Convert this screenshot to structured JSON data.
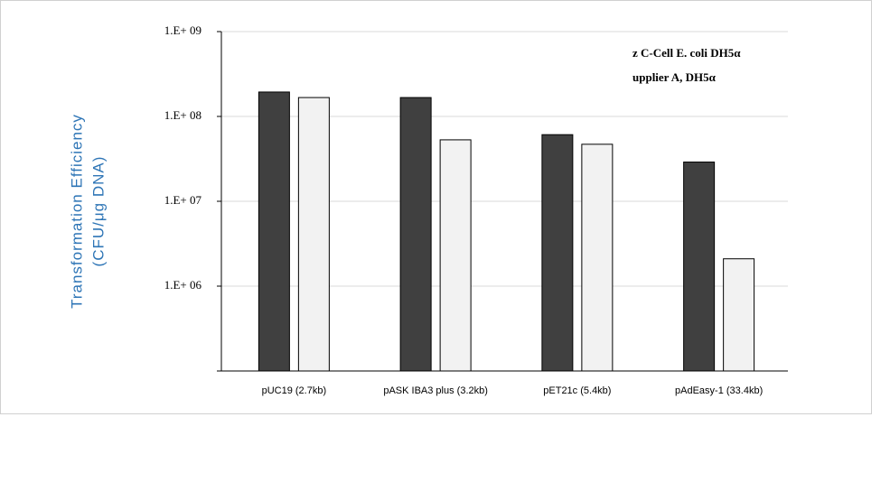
{
  "chart_data": {
    "type": "bar",
    "y_label": [
      "Transformation  Efficiency",
      "(CFU/μg DNA)"
    ],
    "categories": [
      "pUC19 (2.7kb)",
      "pASK IBA3 plus (3.2kb)",
      "pET21c (5.4kb)",
      "pAdEasy-1 (33.4kb)"
    ],
    "series": [
      {
        "name": "z C-Cell E. coli DH5α",
        "color": "#404040",
        "values": [
          194000000,
          167000000,
          61000000,
          29000000
        ]
      },
      {
        "name": "upplier A, DH5α",
        "color": "#f2f2f2",
        "values": [
          167000000,
          53000000,
          47000000,
          2100000
        ]
      }
    ],
    "ylim": [
      100000,
      1000000000
    ],
    "yticks": [
      {
        "value": 1000000,
        "label": "1.E+ 06"
      },
      {
        "value": 10000000,
        "label": "1.E+ 07"
      },
      {
        "value": 100000000,
        "label": "1.E+ 08"
      },
      {
        "value": 1000000000,
        "label": "1.E+ 09"
      }
    ],
    "log_scale": true,
    "grid": true
  }
}
